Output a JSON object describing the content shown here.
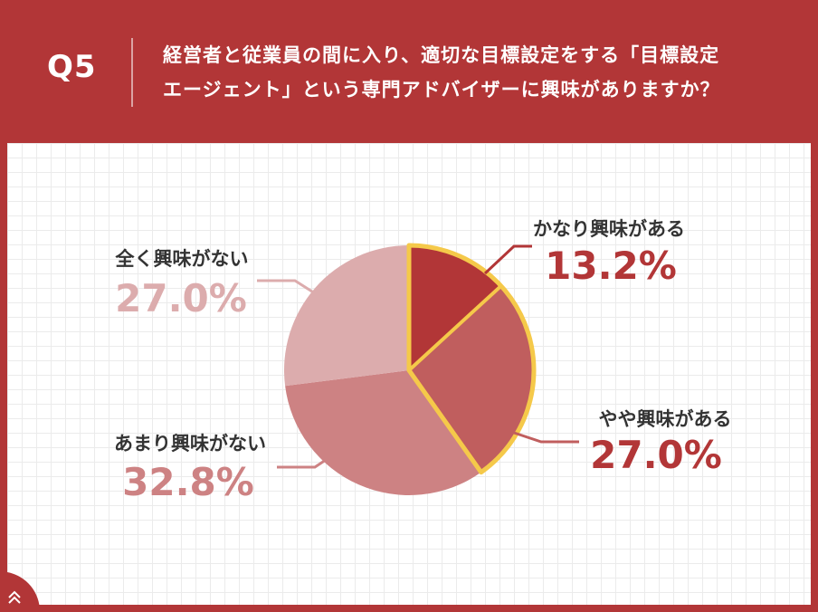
{
  "header": {
    "qnum": "Q5",
    "question_line1": "経営者と従業員の間に入り、適切な目標設定をする「目標設定",
    "question_line2": "エージェント」という専門アドバイザーに興味がありますか？"
  },
  "chart_data": {
    "type": "pie",
    "slices": [
      {
        "label": "かなり興味がある",
        "value": 13.2,
        "value_text": "13.2%",
        "color": "#b23637",
        "label_color": "#b23637",
        "highlight": true
      },
      {
        "label": "やや興味がある",
        "value": 27.0,
        "value_text": "27.0%",
        "color": "#c05e5e",
        "label_color": "#b23637",
        "highlight": true
      },
      {
        "label": "あまり興味がない",
        "value": 32.8,
        "value_text": "32.8%",
        "color": "#cd8283",
        "label_color": "#cd8283",
        "highlight": false
      },
      {
        "label": "全く興味がない",
        "value": 27.0,
        "value_text": "27.0%",
        "color": "#dcacad",
        "label_color": "#dcacad",
        "highlight": false
      }
    ],
    "highlight_color": "#f5c94a",
    "start_angle": "12 o'clock",
    "direction": "clockwise"
  },
  "colors": {
    "background": "#b23637",
    "panel": "#ffffff",
    "label_text": "#333333"
  }
}
